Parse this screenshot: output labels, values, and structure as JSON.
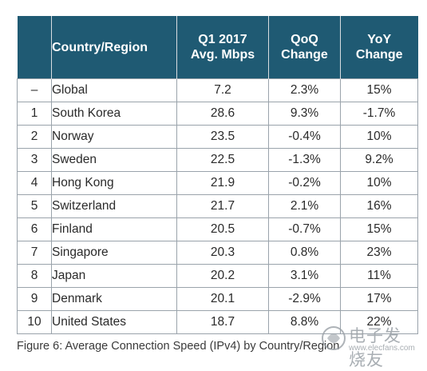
{
  "chart_data": {
    "type": "table",
    "columns": [
      "",
      "Country/Region",
      "Q1 2017 Avg. Mbps",
      "QoQ Change",
      "YoY Change"
    ],
    "rows": [
      {
        "rank": "–",
        "country": "Global",
        "mbps": "7.2",
        "qoq": "2.3%",
        "yoy": "15%"
      },
      {
        "rank": "1",
        "country": "South Korea",
        "mbps": "28.6",
        "qoq": "9.3%",
        "yoy": "-1.7%"
      },
      {
        "rank": "2",
        "country": "Norway",
        "mbps": "23.5",
        "qoq": "-0.4%",
        "yoy": "10%"
      },
      {
        "rank": "3",
        "country": "Sweden",
        "mbps": "22.5",
        "qoq": "-1.3%",
        "yoy": "9.2%"
      },
      {
        "rank": "4",
        "country": "Hong Kong",
        "mbps": "21.9",
        "qoq": "-0.2%",
        "yoy": "10%"
      },
      {
        "rank": "5",
        "country": "Switzerland",
        "mbps": "21.7",
        "qoq": "2.1%",
        "yoy": "16%"
      },
      {
        "rank": "6",
        "country": "Finland",
        "mbps": "20.5",
        "qoq": "-0.7%",
        "yoy": "15%"
      },
      {
        "rank": "7",
        "country": "Singapore",
        "mbps": "20.3",
        "qoq": "0.8%",
        "yoy": "23%"
      },
      {
        "rank": "8",
        "country": "Japan",
        "mbps": "20.2",
        "qoq": "3.1%",
        "yoy": "11%"
      },
      {
        "rank": "9",
        "country": "Denmark",
        "mbps": "20.1",
        "qoq": "-2.9%",
        "yoy": "17%"
      },
      {
        "rank": "10",
        "country": "United States",
        "mbps": "18.7",
        "qoq": "8.8%",
        "yoy": "22%"
      }
    ],
    "caption": "Figure 6: Average Connection Speed (IPv4) by Country/Region"
  },
  "header": {
    "country": "Country/Region",
    "mbps_line1": "Q1 2017",
    "mbps_line2": "Avg. Mbps",
    "qoq_line1": "QoQ",
    "qoq_line2": "Change",
    "yoy_line1": "YoY",
    "yoy_line2": "Change"
  },
  "watermark": {
    "text": "电子发烧友",
    "url": "www.elecfans.com"
  },
  "colors": {
    "header_bg": "#1f5a73",
    "header_text": "#ffffff",
    "grid": "#9aa3ab"
  }
}
